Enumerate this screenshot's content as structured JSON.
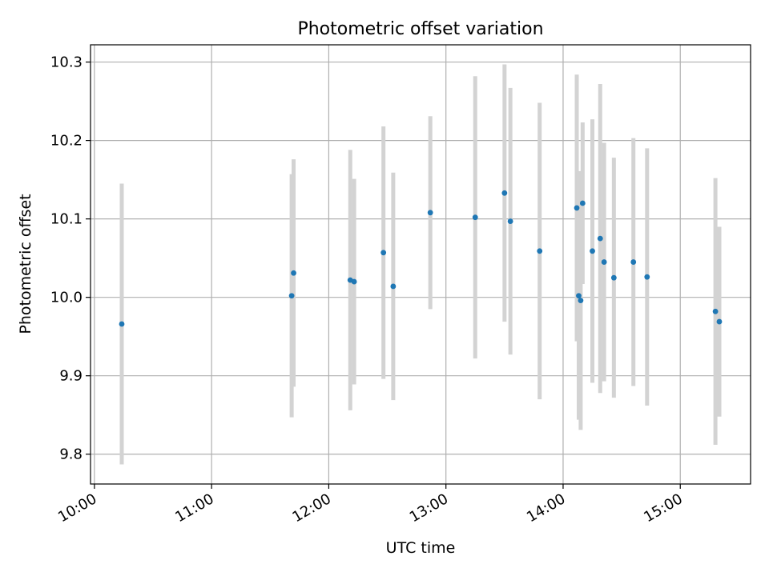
{
  "chart_data": {
    "type": "scatter",
    "title": "Photometric offset variation",
    "xlabel": "UTC time",
    "ylabel": "Photometric offset",
    "x_axis_type": "time",
    "xlim": [
      "09:58",
      "15:36"
    ],
    "ylim": [
      9.762,
      10.322
    ],
    "xticks": [
      "10:00",
      "11:00",
      "12:00",
      "13:00",
      "14:00",
      "15:00"
    ],
    "yticks": [
      9.8,
      9.9,
      10.0,
      10.1,
      10.2,
      10.3
    ],
    "ytick_labels": [
      "9.8",
      "9.9",
      "10.0",
      "10.1",
      "10.2",
      "10.3"
    ],
    "grid": true,
    "legend": "none",
    "colors": {
      "point": "#1f77b4",
      "errorbar": "#d3d3d3",
      "grid": "#b0b0b0"
    },
    "series": [
      {
        "marker": "point",
        "points": [
          {
            "x": "10:14",
            "y": 9.966,
            "err": 0.179
          },
          {
            "x": "11:41",
            "y": 10.002,
            "err": 0.155
          },
          {
            "x": "11:42",
            "y": 10.031,
            "err": 0.145
          },
          {
            "x": "12:11",
            "y": 10.022,
            "err": 0.166
          },
          {
            "x": "12:13",
            "y": 10.02,
            "err": 0.131
          },
          {
            "x": "12:28",
            "y": 10.057,
            "err": 0.161
          },
          {
            "x": "12:33",
            "y": 10.014,
            "err": 0.145
          },
          {
            "x": "12:52",
            "y": 10.108,
            "err": 0.123
          },
          {
            "x": "13:15",
            "y": 10.102,
            "err": 0.18
          },
          {
            "x": "13:30",
            "y": 10.133,
            "err": 0.164
          },
          {
            "x": "13:33",
            "y": 10.097,
            "err": 0.17
          },
          {
            "x": "13:48",
            "y": 10.059,
            "err": 0.189
          },
          {
            "x": "14:07",
            "y": 10.114,
            "err": 0.17
          },
          {
            "x": "14:08",
            "y": 10.002,
            "err": 0.158
          },
          {
            "x": "14:09",
            "y": 9.996,
            "err": 0.165
          },
          {
            "x": "14:10",
            "y": 10.12,
            "err": 0.103
          },
          {
            "x": "14:15",
            "y": 10.059,
            "err": 0.168
          },
          {
            "x": "14:19",
            "y": 10.075,
            "err": 0.197
          },
          {
            "x": "14:21",
            "y": 10.045,
            "err": 0.152
          },
          {
            "x": "14:26",
            "y": 10.025,
            "err": 0.153
          },
          {
            "x": "14:36",
            "y": 10.045,
            "err": 0.158
          },
          {
            "x": "14:43",
            "y": 10.026,
            "err": 0.164
          },
          {
            "x": "15:18",
            "y": 9.982,
            "err": 0.17
          },
          {
            "x": "15:20",
            "y": 9.969,
            "err": 0.121
          }
        ]
      }
    ]
  }
}
